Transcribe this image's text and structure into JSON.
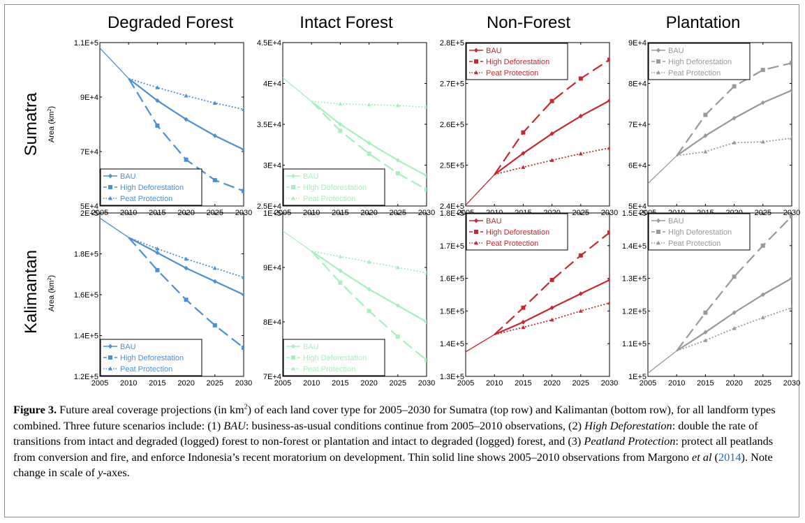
{
  "figure": {
    "label": "Figure 3.",
    "ref_year": "2014"
  },
  "caption": {
    "p1": " Future areal coverage projections (in km",
    "p1_sup": "2",
    "p2": ") of each land cover type for 2005–2030 for Sumatra (top row) and Kalimantan (bottom row), for all landform types combined. Three future scenarios include: (1) ",
    "bau": "BAU",
    "p3": ": business-as-usual conditions continue from 2005–2010 observations, (2) ",
    "high": "High Deforestation",
    "p4": ": double the rate of transitions from intact and degraded (logged) forest to non-forest or plantation and intact to degraded (logged) forest, and (3) ",
    "peat": "Peatland Protection",
    "p5": ": protect all peatlands from conversion and fire, and enforce Indonesia’s recent moratorium on development. Thin solid line shows 2005–2010 observations from Margono ",
    "etal": "et al",
    "p6": " (",
    "p7": "). Note change in scale of ",
    "yaxes": "y",
    "p8": "-axes."
  },
  "column_titles": [
    "Degraded Forest",
    "Intact Forest",
    "Non-Forest",
    "Plantation"
  ],
  "row_titles": [
    "Sumatra",
    "Kalimantan"
  ],
  "ylabel": "Area (km",
  "ylabel_sup": "2",
  "ylabel_end": ")",
  "chart_data": [
    {
      "type": "line",
      "row": 0,
      "col": 0,
      "color": "#4a90d9",
      "legend_pos": "bottom-left",
      "ylim": [
        50000,
        110000
      ],
      "yticks": [
        50000,
        70000,
        90000,
        110000
      ],
      "yticklabels": [
        "5E+4",
        "7E+4",
        "9E+4",
        "1.1E+5"
      ],
      "x": [
        2005,
        2010,
        2015,
        2020,
        2025,
        2030
      ],
      "xticklabels": [
        "2005",
        "2010",
        "2015",
        "2020",
        "2025",
        "2030"
      ],
      "observed": {
        "x": [
          2005,
          2010
        ],
        "values": [
          108000,
          96800
        ]
      },
      "series": [
        {
          "name": "BAU",
          "style": "solid",
          "marker": "diamond",
          "x": [
            2010,
            2015,
            2020,
            2025,
            2030
          ],
          "values": [
            96800,
            88700,
            81800,
            75800,
            70700
          ]
        },
        {
          "name": "High Deforestation",
          "style": "dashed",
          "marker": "square",
          "x": [
            2010,
            2015,
            2020,
            2025,
            2030
          ],
          "values": [
            96800,
            79500,
            67000,
            59500,
            55500
          ]
        },
        {
          "name": "Peat Protection",
          "style": "dotted",
          "marker": "triangle",
          "x": [
            2010,
            2015,
            2020,
            2025,
            2030
          ],
          "values": [
            96800,
            93500,
            90500,
            87800,
            85500
          ]
        }
      ]
    },
    {
      "type": "line",
      "row": 0,
      "col": 1,
      "color": "#a6f0bf",
      "legend_pos": "bottom-left",
      "ylim": [
        25000,
        45000
      ],
      "yticks": [
        25000,
        30000,
        35000,
        40000,
        45000
      ],
      "yticklabels": [
        "2.5E+4",
        "3E+4",
        "3.5E+4",
        "4E+4",
        "4.5E+4"
      ],
      "x": [
        2005,
        2010,
        2015,
        2020,
        2025,
        2030
      ],
      "xticklabels": [
        "2005",
        "2010",
        "2015",
        "2020",
        "2025",
        "2030"
      ],
      "observed": {
        "x": [
          2005,
          2010
        ],
        "values": [
          40700,
          37800
        ]
      },
      "series": [
        {
          "name": "BAU",
          "style": "solid",
          "marker": "diamond",
          "x": [
            2010,
            2015,
            2020,
            2025,
            2030
          ],
          "values": [
            37800,
            35000,
            32700,
            30600,
            28700
          ]
        },
        {
          "name": "High Deforestation",
          "style": "dashed",
          "marker": "square",
          "x": [
            2010,
            2015,
            2020,
            2025,
            2030
          ],
          "values": [
            37800,
            34200,
            31400,
            29000,
            27000
          ]
        },
        {
          "name": "Peat Protection",
          "style": "dotted",
          "marker": "triangle",
          "x": [
            2010,
            2015,
            2020,
            2025,
            2030
          ],
          "values": [
            37800,
            37500,
            37400,
            37300,
            37100
          ]
        }
      ]
    },
    {
      "type": "line",
      "row": 0,
      "col": 2,
      "color": "#c8282d",
      "legend_pos": "top-left",
      "ylim": [
        240000,
        280000
      ],
      "yticks": [
        240000,
        250000,
        260000,
        270000,
        280000
      ],
      "yticklabels": [
        "2.4E+5",
        "2.5E+5",
        "2.6E+5",
        "2.7E+5",
        "2.8E+5"
      ],
      "x": [
        2005,
        2010,
        2015,
        2020,
        2025,
        2030
      ],
      "xticklabels": [
        "2005",
        "2010",
        "2015",
        "2020",
        "2025",
        "2030"
      ],
      "observed": {
        "x": [
          2005,
          2010
        ],
        "values": [
          240200,
          247700
        ]
      },
      "series": [
        {
          "name": "BAU",
          "style": "solid",
          "marker": "diamond",
          "x": [
            2010,
            2015,
            2020,
            2025,
            2030
          ],
          "values": [
            247700,
            252900,
            257700,
            262000,
            265800
          ]
        },
        {
          "name": "High Deforestation",
          "style": "dashed",
          "marker": "square",
          "x": [
            2010,
            2015,
            2020,
            2025,
            2030
          ],
          "values": [
            247700,
            258000,
            265700,
            271200,
            275800
          ]
        },
        {
          "name": "Peat Protection",
          "style": "dotted",
          "marker": "triangle",
          "x": [
            2010,
            2015,
            2020,
            2025,
            2030
          ],
          "values": [
            247700,
            249500,
            251200,
            252800,
            254200
          ]
        }
      ]
    },
    {
      "type": "line",
      "row": 0,
      "col": 3,
      "color": "#999999",
      "legend_pos": "top-left",
      "ylim": [
        50000,
        90000
      ],
      "yticks": [
        50000,
        60000,
        70000,
        80000,
        90000
      ],
      "yticklabels": [
        "5E+4",
        "6E+4",
        "7E+4",
        "8E+4",
        "9E+4"
      ],
      "x": [
        2005,
        2010,
        2015,
        2020,
        2025,
        2030
      ],
      "xticklabels": [
        "2005",
        "2010",
        "2015",
        "2020",
        "2025",
        "2030"
      ],
      "observed": {
        "x": [
          2005,
          2010
        ],
        "values": [
          55500,
          62300
        ]
      },
      "series": [
        {
          "name": "BAU",
          "style": "solid",
          "marker": "diamond",
          "x": [
            2010,
            2015,
            2020,
            2025,
            2030
          ],
          "values": [
            62300,
            67200,
            71500,
            75300,
            78300
          ]
        },
        {
          "name": "High Deforestation",
          "style": "dashed",
          "marker": "square",
          "x": [
            2010,
            2015,
            2020,
            2025,
            2030
          ],
          "values": [
            62300,
            72300,
            79300,
            83300,
            85000
          ]
        },
        {
          "name": "Peat Protection",
          "style": "dotted",
          "marker": "triangle",
          "x": [
            2010,
            2015,
            2020,
            2025,
            2030
          ],
          "values": [
            62300,
            63300,
            65500,
            65700,
            66600
          ]
        }
      ]
    },
    {
      "type": "line",
      "row": 1,
      "col": 0,
      "color": "#4a90d9",
      "legend_pos": "bottom-left",
      "ylim": [
        120000,
        200000
      ],
      "yticks": [
        120000,
        140000,
        160000,
        180000,
        200000
      ],
      "yticklabels": [
        "1.2E+5",
        "1.4E+5",
        "1.6E+5",
        "1.8E+5",
        "2E+5"
      ],
      "x": [
        2005,
        2010,
        2015,
        2020,
        2025,
        2030
      ],
      "xticklabels": [
        "2005",
        "2010",
        "2015",
        "2020",
        "2025",
        "2030"
      ],
      "observed": {
        "x": [
          2005,
          2010
        ],
        "values": [
          197500,
          188000
        ]
      },
      "series": [
        {
          "name": "BAU",
          "style": "solid",
          "marker": "diamond",
          "x": [
            2010,
            2015,
            2020,
            2025,
            2030
          ],
          "values": [
            188000,
            180500,
            173000,
            166500,
            160000
          ]
        },
        {
          "name": "High Deforestation",
          "style": "dashed",
          "marker": "square",
          "x": [
            2010,
            2015,
            2020,
            2025,
            2030
          ],
          "values": [
            188000,
            172000,
            157500,
            145000,
            134000
          ]
        },
        {
          "name": "Peat Protection",
          "style": "dotted",
          "marker": "triangle",
          "x": [
            2010,
            2015,
            2020,
            2025,
            2030
          ],
          "values": [
            188000,
            182500,
            177500,
            173000,
            168500
          ]
        }
      ]
    },
    {
      "type": "line",
      "row": 1,
      "col": 1,
      "color": "#a6f0bf",
      "legend_pos": "bottom-left",
      "ylim": [
        70000,
        100000
      ],
      "yticks": [
        70000,
        80000,
        90000,
        100000
      ],
      "yticklabels": [
        "7E+4",
        "8E+4",
        "9E+4",
        "1E+5"
      ],
      "x": [
        2005,
        2010,
        2015,
        2020,
        2025,
        2030
      ],
      "xticklabels": [
        "2005",
        "2010",
        "2015",
        "2020",
        "2025",
        "2030"
      ],
      "observed": {
        "x": [
          2005,
          2010
        ],
        "values": [
          96700,
          93000
        ]
      },
      "series": [
        {
          "name": "BAU",
          "style": "solid",
          "marker": "diamond",
          "x": [
            2010,
            2015,
            2020,
            2025,
            2030
          ],
          "values": [
            93000,
            89400,
            86000,
            83000,
            80000
          ]
        },
        {
          "name": "High Deforestation",
          "style": "dashed",
          "marker": "square",
          "x": [
            2010,
            2015,
            2020,
            2025,
            2030
          ],
          "values": [
            93000,
            87200,
            82000,
            77300,
            73000
          ]
        },
        {
          "name": "Peat Protection",
          "style": "dotted",
          "marker": "triangle",
          "x": [
            2010,
            2015,
            2020,
            2025,
            2030
          ],
          "values": [
            93000,
            92000,
            91000,
            90000,
            89000
          ]
        }
      ]
    },
    {
      "type": "line",
      "row": 1,
      "col": 2,
      "color": "#c8282d",
      "legend_pos": "top-left",
      "ylim": [
        130000,
        180000
      ],
      "yticks": [
        130000,
        140000,
        150000,
        160000,
        170000,
        180000
      ],
      "yticklabels": [
        "1.3E+5",
        "1.4E+5",
        "1.5E+5",
        "1.6E+5",
        "1.7E+5",
        "1.8E+5"
      ],
      "x": [
        2005,
        2010,
        2015,
        2020,
        2025,
        2030
      ],
      "xticklabels": [
        "2005",
        "2010",
        "2015",
        "2020",
        "2025",
        "2030"
      ],
      "observed": {
        "x": [
          2005,
          2010
        ],
        "values": [
          137500,
          142800
        ]
      },
      "series": [
        {
          "name": "BAU",
          "style": "solid",
          "marker": "diamond",
          "x": [
            2010,
            2015,
            2020,
            2025,
            2030
          ],
          "values": [
            142800,
            146600,
            151000,
            155300,
            159500
          ]
        },
        {
          "name": "High Deforestation",
          "style": "dashed",
          "marker": "square",
          "x": [
            2010,
            2015,
            2020,
            2025,
            2030
          ],
          "values": [
            142800,
            151000,
            159500,
            167000,
            174000
          ]
        },
        {
          "name": "Peat Protection",
          "style": "dotted",
          "marker": "triangle",
          "x": [
            2010,
            2015,
            2020,
            2025,
            2030
          ],
          "values": [
            142800,
            145000,
            147300,
            150000,
            152500
          ]
        }
      ]
    },
    {
      "type": "line",
      "row": 1,
      "col": 3,
      "color": "#999999",
      "legend_pos": "top-left",
      "ylim": [
        100000,
        150000
      ],
      "yticks": [
        100000,
        110000,
        120000,
        130000,
        140000,
        150000
      ],
      "yticklabels": [
        "1E+5",
        "1.1E+5",
        "1.2E+5",
        "1.3E+5",
        "1.4E+5",
        "1.5E+5"
      ],
      "x": [
        2005,
        2010,
        2015,
        2020,
        2025,
        2030
      ],
      "xticklabels": [
        "2005",
        "2010",
        "2015",
        "2020",
        "2025",
        "2030"
      ],
      "observed": {
        "x": [
          2005,
          2010
        ],
        "values": [
          101000,
          107800
        ]
      },
      "series": [
        {
          "name": "BAU",
          "style": "solid",
          "marker": "diamond",
          "x": [
            2010,
            2015,
            2020,
            2025,
            2030
          ],
          "values": [
            107800,
            113500,
            119500,
            125000,
            130000
          ]
        },
        {
          "name": "High Deforestation",
          "style": "dashed",
          "marker": "square",
          "x": [
            2010,
            2015,
            2020,
            2025,
            2030
          ],
          "values": [
            107800,
            119500,
            130500,
            140000,
            149000
          ]
        },
        {
          "name": "Peat Protection",
          "style": "dotted",
          "marker": "triangle",
          "x": [
            2010,
            2015,
            2020,
            2025,
            2030
          ],
          "values": [
            107800,
            111000,
            114700,
            118000,
            121000
          ]
        }
      ]
    }
  ]
}
